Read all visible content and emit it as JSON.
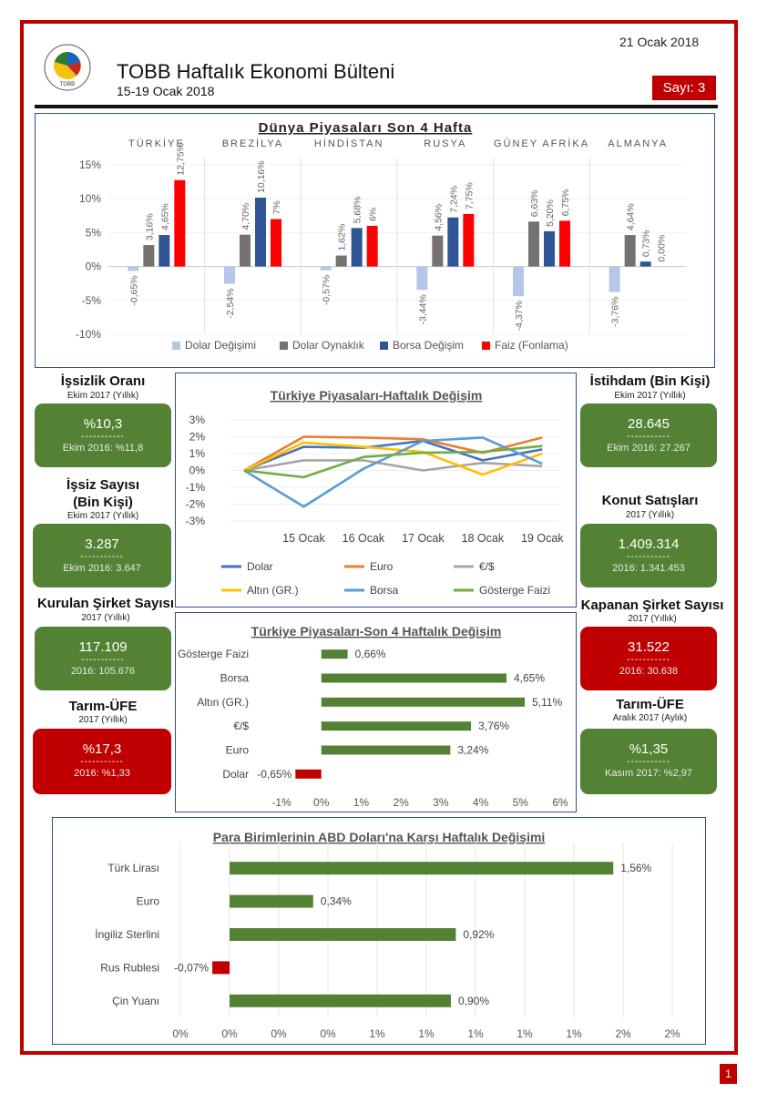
{
  "header": {
    "date": "21 Ocak 2018",
    "title": "TOBB Haftalık Ekonomi Bülteni",
    "period": "15-19 Ocak 2018",
    "issue": "Sayı: 3",
    "logo_text": "TOBB"
  },
  "page_number": "1",
  "colors": {
    "red": "#c00000",
    "green": "#548235",
    "navy": "#2f4f8f"
  },
  "stats": {
    "issizlik": {
      "title": "İşsizlik Oranı",
      "sub": "Ekim 2017 (Yıllık)",
      "value": "%10,3",
      "dash": "-----------",
      "prev": "Ekim 2016: %11,8"
    },
    "issiz_sayisi": {
      "title_line1": "İşsiz Sayısı",
      "title_line2": "(Bin Kişi)",
      "sub": "Ekim 2017 (Yıllık)",
      "value": "3.287",
      "dash": "-----------",
      "prev": "Ekim 2016: 3.647"
    },
    "kurulan": {
      "title": "Kurulan Şirket Sayısı",
      "sub": "2017 (Yıllık)",
      "value": "117.109",
      "dash": "-----------",
      "prev": "2016: 105.676"
    },
    "tarim_yillik": {
      "title": "Tarım-ÜFE",
      "sub": "2017 (Yıllık)",
      "value": "%17,3",
      "dash": "-----------",
      "prev": "2016: %1,33"
    },
    "istihdam": {
      "title": "İstihdam (Bin Kişi)",
      "sub": "Ekim 2017 (Yıllık)",
      "value": "28.645",
      "dash": "-----------",
      "prev": "Ekim 2016: 27.267"
    },
    "konut": {
      "title": "Konut Satışları",
      "sub": "2017 (Yıllık)",
      "value": "1.409.314",
      "dash": "-----------",
      "prev": "2016: 1.341.453"
    },
    "kapanan": {
      "title": "Kapanan Şirket Sayısı",
      "sub": "2017 (Yıllık)",
      "value": "31.522",
      "dash": "-----------",
      "prev": "2016: 30.638"
    },
    "tarim_aylik": {
      "title": "Tarım-ÜFE",
      "sub": "Aralık 2017 (Aylık)",
      "value": "%1,35",
      "dash": "-----------",
      "prev": "Kasım 2017: %2,97"
    }
  },
  "chart_data": [
    {
      "id": "world",
      "type": "bar",
      "title": "Dünya Piyasaları Son 4 Hafta",
      "categories": [
        "TÜRKİYE",
        "BREZİLYA",
        "HİNDİSTAN",
        "RUSYA",
        "GÜNEY AFRİKA",
        "ALMANYA"
      ],
      "series": [
        {
          "name": "Dolar Değişimi",
          "color": "#b4c7e7",
          "values": [
            -0.65,
            -2.54,
            -0.57,
            -3.44,
            -4.37,
            -3.76
          ],
          "labels": [
            "-0,65%",
            "-2,54%",
            "-0,57%",
            "-3,44%",
            "-4,37%",
            "-3,76%"
          ]
        },
        {
          "name": "Dolar Oynaklık",
          "color": "#767171",
          "values": [
            3.16,
            4.7,
            1.62,
            4.56,
            6.63,
            4.64
          ],
          "labels": [
            "3,16%",
            "4,70%",
            "1,62%",
            "4,56%",
            "6,63%",
            "4,64%"
          ]
        },
        {
          "name": "Borsa Değişim",
          "color": "#2f5597",
          "values": [
            4.65,
            10.16,
            5.68,
            7.24,
            5.2,
            0.73
          ],
          "labels": [
            "4,65%",
            "10,16%",
            "5,68%",
            "7,24%",
            "5,20%",
            "0,73%"
          ]
        },
        {
          "name": "Faiz (Fonlama)",
          "color": "#ff0000",
          "values": [
            12.75,
            7,
            6,
            7.75,
            6.75,
            0
          ],
          "labels": [
            "12,75%",
            "7%",
            "6%",
            "7,75%",
            "6,75%",
            "0,00%"
          ]
        }
      ],
      "ylim": [
        -10,
        15
      ],
      "yticks": [
        15,
        10,
        5,
        0,
        -5,
        -10
      ],
      "ytick_labels": [
        "15%",
        "10%",
        "5%",
        "0%",
        "-5%",
        "-10%"
      ]
    },
    {
      "id": "weekly",
      "type": "line",
      "title": "Türkiye Piyasaları-Haftalık Değişim",
      "x": [
        "",
        "15 Ocak",
        "16 Ocak",
        "17 Ocak",
        "18 Ocak",
        "19 Ocak"
      ],
      "series": [
        {
          "name": "Dolar",
          "color": "#4472c4",
          "values": [
            0,
            1.4,
            1.35,
            1.75,
            0.6,
            1.25
          ]
        },
        {
          "name": "Euro",
          "color": "#ed7d31",
          "values": [
            0,
            2.0,
            1.95,
            1.85,
            1.05,
            1.95
          ]
        },
        {
          "name": "€/$",
          "color": "#a5a5a5",
          "values": [
            0,
            0.6,
            0.6,
            0.0,
            0.45,
            0.25
          ]
        },
        {
          "name": "Altın (GR.)",
          "color": "#ffc000",
          "values": [
            0,
            1.65,
            1.4,
            1.1,
            -0.25,
            1.0
          ]
        },
        {
          "name": "Borsa",
          "color": "#5b9bd5",
          "values": [
            0,
            -2.15,
            0.1,
            1.75,
            1.95,
            0.4
          ]
        },
        {
          "name": "Gösterge Faizi",
          "color": "#70ad47",
          "values": [
            0,
            -0.4,
            0.8,
            1.05,
            1.1,
            1.45
          ]
        }
      ],
      "ylim": [
        -3,
        3
      ],
      "yticks": [
        3,
        2,
        1,
        0,
        -1,
        -2,
        -3
      ],
      "ytick_labels": [
        "3%",
        "2%",
        "1%",
        "0%",
        "-1%",
        "-2%",
        "-3%"
      ]
    },
    {
      "id": "fourweek",
      "type": "bar",
      "orientation": "horizontal",
      "title": "Türkiye Piyasaları-Son 4 Haftalık Değişim",
      "categories": [
        "Gösterge Faizi",
        "Borsa",
        "Altın (GR.)",
        "€/$",
        "Euro",
        "Dolar"
      ],
      "values": [
        0.66,
        4.65,
        5.11,
        3.76,
        3.24,
        -0.65
      ],
      "labels": [
        "0,66%",
        "4,65%",
        "5,11%",
        "3,76%",
        "3,24%",
        "-0,65%"
      ],
      "xlim": [
        -1,
        6
      ],
      "xticks": [
        -1,
        0,
        1,
        2,
        3,
        4,
        5,
        6
      ],
      "xtick_labels": [
        "-1%",
        "0%",
        "1%",
        "2%",
        "3%",
        "4%",
        "5%",
        "6%"
      ]
    },
    {
      "id": "currency",
      "type": "bar",
      "orientation": "horizontal",
      "title": "Para Birimlerinin ABD Doları'na Karşı Haftalık Değişimi",
      "categories": [
        "Türk Lirası",
        "Euro",
        "İngiliz Sterlini",
        "Rus Rublesi",
        "Çin Yuanı"
      ],
      "values": [
        1.56,
        0.34,
        0.92,
        -0.07,
        0.9
      ],
      "labels": [
        "1,56%",
        "0,34%",
        "0,92%",
        "-0,07%",
        "0,90%"
      ],
      "xlim": [
        -0.2,
        1.8
      ],
      "xticks": [
        -0.2,
        0,
        0.2,
        0.4,
        0.6,
        0.8,
        1.0,
        1.2,
        1.4,
        1.6,
        1.8
      ],
      "xtick_labels": [
        "0%",
        "0%",
        "0%",
        "0%",
        "1%",
        "1%",
        "1%",
        "1%",
        "1%",
        "2%",
        "2%"
      ]
    }
  ]
}
